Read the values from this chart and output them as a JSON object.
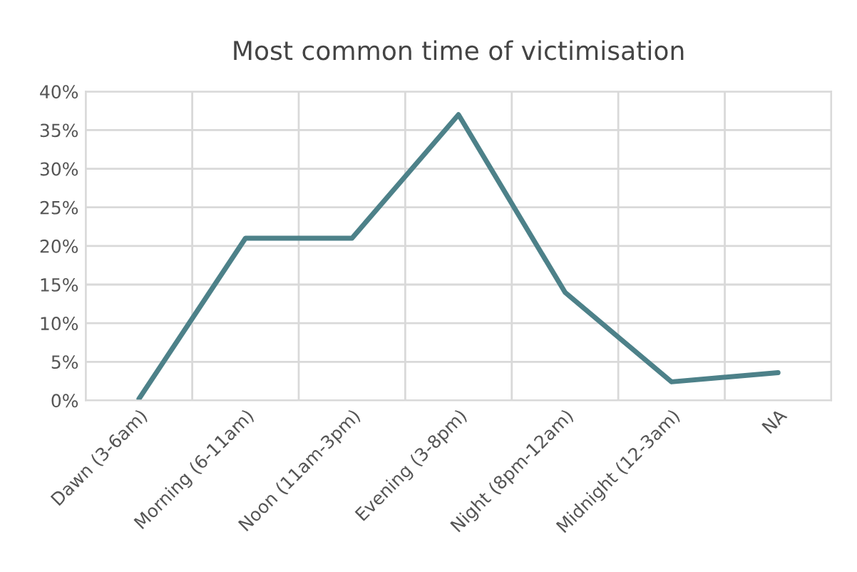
{
  "chart_data": {
    "type": "line",
    "title": "Most common time of victimisation",
    "categories": [
      "Dawn (3-6am)",
      "Morning (6-11am)",
      "Noon (11am-3pm)",
      "Evening (3-8pm)",
      "Night (8pm-12am)",
      "Midnight (12-3am)",
      "NA"
    ],
    "series": [
      {
        "color": "#4d8189",
        "values": [
          0.2,
          21,
          21,
          37,
          14,
          2.4,
          3.6
        ]
      }
    ],
    "ylim": [
      0,
      40
    ],
    "yticks": [
      {
        "value": 0,
        "label": "0%"
      },
      {
        "value": 5,
        "label": "5%"
      },
      {
        "value": 10,
        "label": "10%"
      },
      {
        "value": 15,
        "label": "15%"
      },
      {
        "value": 20,
        "label": "20%"
      },
      {
        "value": 25,
        "label": "25%"
      },
      {
        "value": 30,
        "label": "30%"
      },
      {
        "value": 35,
        "label": "35%"
      },
      {
        "value": 40,
        "label": "40%"
      }
    ],
    "grid": true,
    "marker": "none",
    "line_style": "solid"
  }
}
